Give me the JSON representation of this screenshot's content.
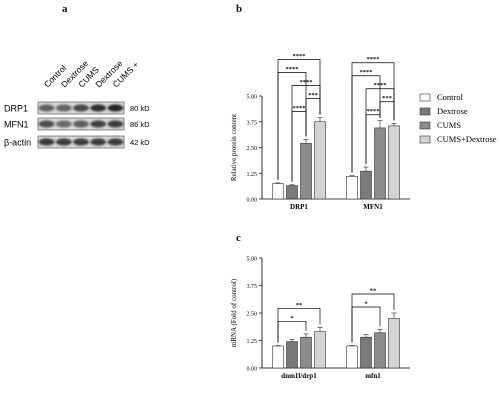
{
  "panels": {
    "a": "a",
    "b": "b",
    "c": "c"
  },
  "western_blot": {
    "lanes": [
      "Control",
      "Dextrose",
      "CUMS",
      "Dextrose",
      "CUMS +"
    ],
    "bands": [
      {
        "protein": "DRP1",
        "size": "80 kD"
      },
      {
        "protein": "MFN1",
        "size": "86 kD"
      },
      {
        "protein": "β-actin",
        "size": "42 kD"
      }
    ]
  },
  "legend": [
    "Control",
    "Dextrose",
    "CUMS",
    "CUMS+Dextrose"
  ],
  "colors": {
    "Control": "#ffffff",
    "Dextrose": "#7a7a7a",
    "CUMS": "#8c8c8c",
    "CUMS+Dextrose": "#d4d4d4"
  },
  "chart_data": [
    {
      "type": "bar",
      "ylabel": "Relative protein content",
      "categories": [
        "DRP1",
        "MFN1"
      ],
      "ylim": [
        0,
        5
      ],
      "yticks": [
        "0.00",
        "1.25",
        "2.50",
        "3.75",
        "5.00"
      ],
      "series": [
        {
          "name": "Control",
          "values": [
            0.75,
            1.1
          ],
          "errors": [
            0.03,
            0.03
          ]
        },
        {
          "name": "Dextrose",
          "values": [
            0.65,
            1.35
          ],
          "errors": [
            0.04,
            0.2
          ]
        },
        {
          "name": "CUMS",
          "values": [
            2.7,
            3.45
          ],
          "errors": [
            0.2,
            0.35
          ]
        },
        {
          "name": "CUMS+Dextrose",
          "values": [
            3.75,
            3.55
          ],
          "errors": [
            0.2,
            0.12
          ]
        }
      ],
      "significance": [
        {
          "from": 0,
          "to": 3,
          "label": "****"
        },
        {
          "from": 1,
          "to": 3,
          "label": "****"
        },
        {
          "from": 0,
          "to": 2,
          "label": "****"
        },
        {
          "from": 1,
          "to": 2,
          "label": "****"
        },
        {
          "from": 2,
          "to": 3,
          "label": "***"
        }
      ]
    },
    {
      "type": "bar",
      "ylabel": "mRNA (Fold of control)",
      "categories": [
        "dnm1l/drp1",
        "mfn1"
      ],
      "ylim": [
        0,
        5
      ],
      "yticks": [
        "0.00",
        "1.25",
        "2.50",
        "3.75",
        "5.00"
      ],
      "series": [
        {
          "name": "Control",
          "values": [
            1.0,
            1.0
          ],
          "errors": [
            0.02,
            0.02
          ]
        },
        {
          "name": "Dextrose",
          "values": [
            1.2,
            1.4
          ],
          "errors": [
            0.1,
            0.12
          ]
        },
        {
          "name": "CUMS",
          "values": [
            1.4,
            1.6
          ],
          "errors": [
            0.15,
            0.15
          ]
        },
        {
          "name": "CUMS+Dextrose",
          "values": [
            1.65,
            2.25
          ],
          "errors": [
            0.2,
            0.25
          ]
        }
      ],
      "significance": [
        {
          "from": 0,
          "to": 3,
          "label": "**"
        },
        {
          "from": 0,
          "to": 2,
          "label": "*"
        }
      ]
    }
  ]
}
